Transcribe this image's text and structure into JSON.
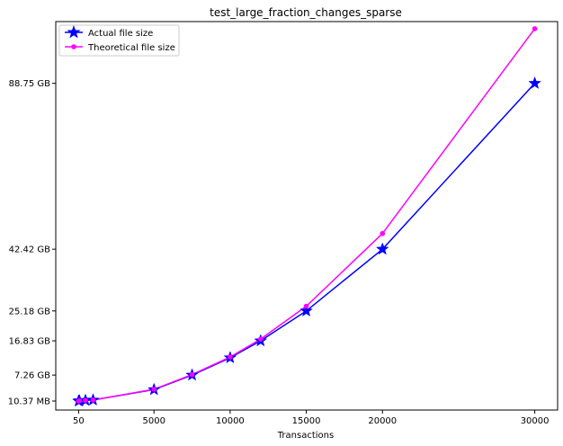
{
  "chart_data": {
    "type": "line",
    "title": "test_large_fraction_changes_sparse",
    "xlabel": "Transactions",
    "ylabel": "",
    "x_ticks": [
      50,
      5000,
      10000,
      15000,
      20000,
      30000
    ],
    "x_tick_labels": [
      "50",
      "5000",
      "10000",
      "15000",
      "20000",
      "30000"
    ],
    "y_ticks": [
      0.01037,
      7.26,
      16.83,
      25.18,
      42.42,
      88.75
    ],
    "y_tick_labels": [
      "10.37 MB",
      "7.26 GB",
      "16.83 GB",
      "25.18 GB",
      "42.42 GB",
      "88.75 GB"
    ],
    "xlim": [
      -1450,
      31500
    ],
    "ylim": [
      -2.5,
      106
    ],
    "grid": false,
    "legend_position": "top-left",
    "series": [
      {
        "name": "Actual file size",
        "color": "#0000ff",
        "marker": "star",
        "x": [
          50,
          100,
          500,
          1000,
          5000,
          7500,
          10000,
          12000,
          15000,
          20000,
          30000
        ],
        "y": [
          0.01037,
          0.1,
          0.2,
          0.3,
          3.2,
          7.26,
          12.1,
          16.83,
          25.18,
          42.42,
          88.75
        ]
      },
      {
        "name": "Theoretical file size",
        "color": "#ff00ff",
        "marker": "circle",
        "x": [
          50,
          100,
          500,
          1000,
          5000,
          7500,
          10000,
          12000,
          15000,
          20000,
          30000
        ],
        "y": [
          0.01037,
          0.1,
          0.2,
          0.3,
          3.3,
          7.4,
          12.3,
          17.3,
          26.5,
          46.8,
          104.0
        ]
      }
    ]
  }
}
